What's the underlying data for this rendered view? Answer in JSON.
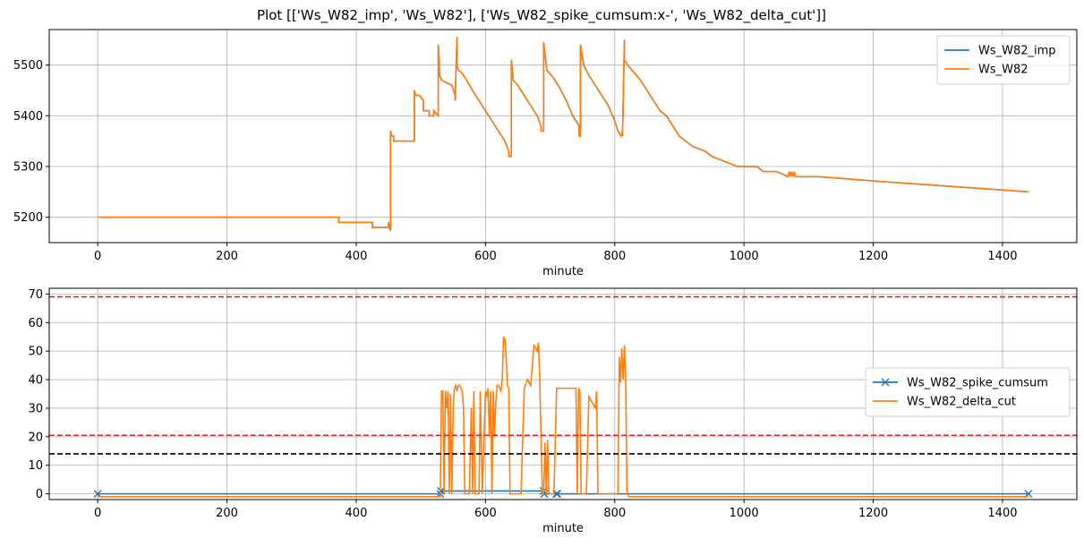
{
  "title": "Plot [['Ws_W82_imp', 'Ws_W82'], ['Ws_W82_spike_cumsum:x-', 'Ws_W82_delta_cut']]",
  "chart_data": [
    {
      "type": "line",
      "xlabel": "minute",
      "ylabel": "",
      "xlim": [
        -75,
        1515
      ],
      "ylim": [
        5150,
        5570
      ],
      "xticks": [
        0,
        200,
        400,
        600,
        800,
        1000,
        1200,
        1400
      ],
      "yticks": [
        5200,
        5300,
        5400,
        5500
      ],
      "grid": true,
      "legend_position": "top-right",
      "series": [
        {
          "name": "Ws_W82_imp",
          "color": "#1f77b4",
          "x": [
            0,
            373,
            373,
            376,
            376,
            425,
            425,
            450,
            450,
            453,
            453,
            455,
            458,
            458,
            475,
            475,
            490,
            490,
            492,
            495,
            498,
            504,
            504,
            513,
            513,
            520,
            520,
            527,
            527,
            529,
            532,
            540,
            548,
            553,
            553,
            556,
            556,
            558,
            563,
            571,
            580,
            590,
            600,
            610,
            620,
            630,
            636,
            636,
            640,
            640,
            643,
            650,
            660,
            670,
            680,
            683,
            686,
            686,
            690,
            690,
            695,
            705,
            715,
            725,
            735,
            745,
            745,
            747,
            747,
            752,
            760,
            770,
            780,
            790,
            800,
            805,
            810,
            812,
            812,
            815,
            815,
            820,
            830,
            840,
            850,
            860,
            870,
            880,
            890,
            900,
            910,
            920,
            930,
            940,
            950,
            960,
            970,
            980,
            990,
            1000,
            1010,
            1020,
            1030,
            1040,
            1050,
            1060,
            1068,
            1070,
            1072,
            1074,
            1076,
            1078,
            1080,
            1090,
            1100,
            1115,
            1115,
            1217,
            1217,
            1330,
            1330,
            1440
          ],
          "y": [
            5200,
            5200,
            5190,
            5190,
            5190,
            5190,
            5180,
            5180,
            5190,
            5173,
            5370,
            5360,
            5360,
            5350,
            5350,
            5350,
            5350,
            5450,
            5440,
            5440,
            5440,
            5430,
            5410,
            5410,
            5400,
            5400,
            5410,
            5400,
            5540,
            5480,
            5470,
            5465,
            5460,
            5440,
            5430,
            5555,
            5500,
            5490,
            5485,
            5470,
            5450,
            5430,
            5410,
            5390,
            5370,
            5350,
            5330,
            5320,
            5320,
            5510,
            5470,
            5460,
            5440,
            5420,
            5400,
            5390,
            5380,
            5370,
            5370,
            5545,
            5490,
            5475,
            5455,
            5430,
            5400,
            5380,
            5360,
            5360,
            5540,
            5500,
            5480,
            5460,
            5440,
            5420,
            5390,
            5370,
            5360,
            5370,
            5360,
            5550,
            5510,
            5500,
            5485,
            5470,
            5450,
            5430,
            5410,
            5400,
            5380,
            5360,
            5350,
            5340,
            5335,
            5330,
            5320,
            5315,
            5310,
            5305,
            5300,
            5300,
            5300,
            5300,
            5290,
            5290,
            5290,
            5285,
            5280,
            5290,
            5280,
            5290,
            5280,
            5290,
            5280,
            5280,
            5280,
            5280,
            5280,
            5270,
            5270,
            5260,
            5260,
            5250
          ]
        },
        {
          "name": "Ws_W82",
          "color": "#ff7f0e",
          "x": [
            0,
            373,
            373,
            376,
            376,
            425,
            425,
            450,
            450,
            453,
            453,
            455,
            458,
            458,
            475,
            475,
            490,
            490,
            492,
            495,
            498,
            504,
            504,
            513,
            513,
            520,
            520,
            527,
            527,
            529,
            532,
            540,
            548,
            553,
            553,
            556,
            556,
            558,
            563,
            571,
            580,
            590,
            600,
            610,
            620,
            630,
            636,
            636,
            640,
            640,
            643,
            650,
            660,
            670,
            680,
            683,
            686,
            686,
            690,
            690,
            695,
            705,
            715,
            725,
            735,
            745,
            745,
            747,
            747,
            752,
            760,
            770,
            780,
            790,
            800,
            805,
            810,
            812,
            812,
            815,
            815,
            820,
            830,
            840,
            850,
            860,
            870,
            880,
            890,
            900,
            910,
            920,
            930,
            940,
            950,
            960,
            970,
            980,
            990,
            1000,
            1010,
            1020,
            1030,
            1040,
            1050,
            1060,
            1068,
            1070,
            1072,
            1074,
            1076,
            1078,
            1080,
            1090,
            1100,
            1115,
            1115,
            1217,
            1217,
            1330,
            1330,
            1440
          ],
          "y": [
            5200,
            5200,
            5190,
            5190,
            5190,
            5190,
            5180,
            5180,
            5190,
            5173,
            5370,
            5360,
            5360,
            5350,
            5350,
            5350,
            5350,
            5450,
            5440,
            5440,
            5440,
            5430,
            5410,
            5410,
            5400,
            5400,
            5410,
            5400,
            5540,
            5480,
            5470,
            5465,
            5460,
            5440,
            5430,
            5555,
            5500,
            5490,
            5485,
            5470,
            5450,
            5430,
            5410,
            5390,
            5370,
            5350,
            5330,
            5320,
            5320,
            5510,
            5470,
            5460,
            5440,
            5420,
            5400,
            5390,
            5380,
            5370,
            5370,
            5545,
            5490,
            5475,
            5455,
            5430,
            5400,
            5380,
            5360,
            5360,
            5540,
            5500,
            5480,
            5460,
            5440,
            5420,
            5390,
            5370,
            5360,
            5370,
            5360,
            5550,
            5510,
            5500,
            5485,
            5470,
            5450,
            5430,
            5410,
            5400,
            5380,
            5360,
            5350,
            5340,
            5335,
            5330,
            5320,
            5315,
            5310,
            5305,
            5300,
            5300,
            5300,
            5300,
            5290,
            5290,
            5290,
            5285,
            5280,
            5290,
            5280,
            5290,
            5280,
            5290,
            5280,
            5280,
            5280,
            5280,
            5280,
            5270,
            5270,
            5260,
            5260,
            5250
          ]
        }
      ]
    },
    {
      "type": "line",
      "xlabel": "minute",
      "ylabel": "",
      "xlim": [
        -75,
        1515
      ],
      "ylim": [
        -2,
        72
      ],
      "xticks": [
        0,
        200,
        400,
        600,
        800,
        1000,
        1200,
        1400
      ],
      "yticks": [
        0,
        10,
        20,
        30,
        40,
        50,
        60,
        70
      ],
      "grid": true,
      "legend_position": "center-right",
      "hlines": [
        {
          "y": 69,
          "color": "#d62728",
          "style": "dashed"
        },
        {
          "y": 20.5,
          "color": "#d62728",
          "style": "dashed"
        },
        {
          "y": 14,
          "color": "#000000",
          "style": "dashed"
        }
      ],
      "series": [
        {
          "name": "Ws_W82_spike_cumsum",
          "color": "#1f77b4",
          "marker": "x",
          "x": [
            0,
            530,
            531,
            690,
            691,
            710,
            711,
            1440
          ],
          "y": [
            0,
            0,
            1,
            1,
            0,
            0,
            0,
            0
          ]
        },
        {
          "name": "Ws_W82_delta_cut",
          "color": "#ff7f0e",
          "x": [
            0,
            530,
            532,
            534,
            536,
            538,
            540,
            542,
            544,
            546,
            548,
            550,
            552,
            554,
            556,
            558,
            560,
            562,
            564,
            566,
            568,
            570,
            575,
            578,
            580,
            582,
            584,
            586,
            590,
            592,
            595,
            600,
            602,
            604,
            606,
            608,
            610,
            612,
            614,
            616,
            618,
            620,
            622,
            624,
            626,
            628,
            630,
            632,
            634,
            636,
            638,
            640,
            642,
            644,
            646,
            648,
            650,
            655,
            660,
            665,
            670,
            675,
            680,
            682,
            684,
            686,
            688,
            690,
            692,
            694,
            696,
            698,
            700,
            702,
            704,
            706,
            710,
            740,
            742,
            744,
            746,
            748,
            750,
            752,
            754,
            756,
            760,
            770,
            772,
            774,
            776,
            778,
            780,
            782,
            790,
            800,
            805,
            807,
            809,
            811,
            813,
            815,
            817,
            819,
            822,
            1440
          ],
          "y": [
            -1,
            -1,
            36,
            36,
            0,
            36,
            30,
            36,
            0,
            35,
            0,
            30,
            37,
            38,
            36,
            38,
            38,
            37,
            36,
            30,
            0,
            0,
            0,
            30,
            0,
            36,
            0,
            0,
            0,
            36,
            0,
            36,
            34,
            37,
            20,
            36,
            0,
            36,
            20,
            32,
            38,
            38,
            37,
            36,
            40,
            55,
            54,
            48,
            38,
            37,
            0,
            0,
            0,
            0,
            0,
            0,
            0,
            0,
            37,
            40,
            38,
            52,
            50,
            53,
            40,
            20,
            0,
            0,
            18,
            0,
            19,
            0,
            0,
            0,
            0,
            0,
            37,
            37,
            0,
            37,
            36,
            0,
            0,
            0,
            0,
            0,
            34,
            30,
            36,
            0,
            0,
            0,
            0,
            0,
            0,
            0,
            0,
            48,
            39,
            51,
            40,
            52,
            38,
            0,
            -1,
            -1
          ]
        }
      ]
    }
  ]
}
